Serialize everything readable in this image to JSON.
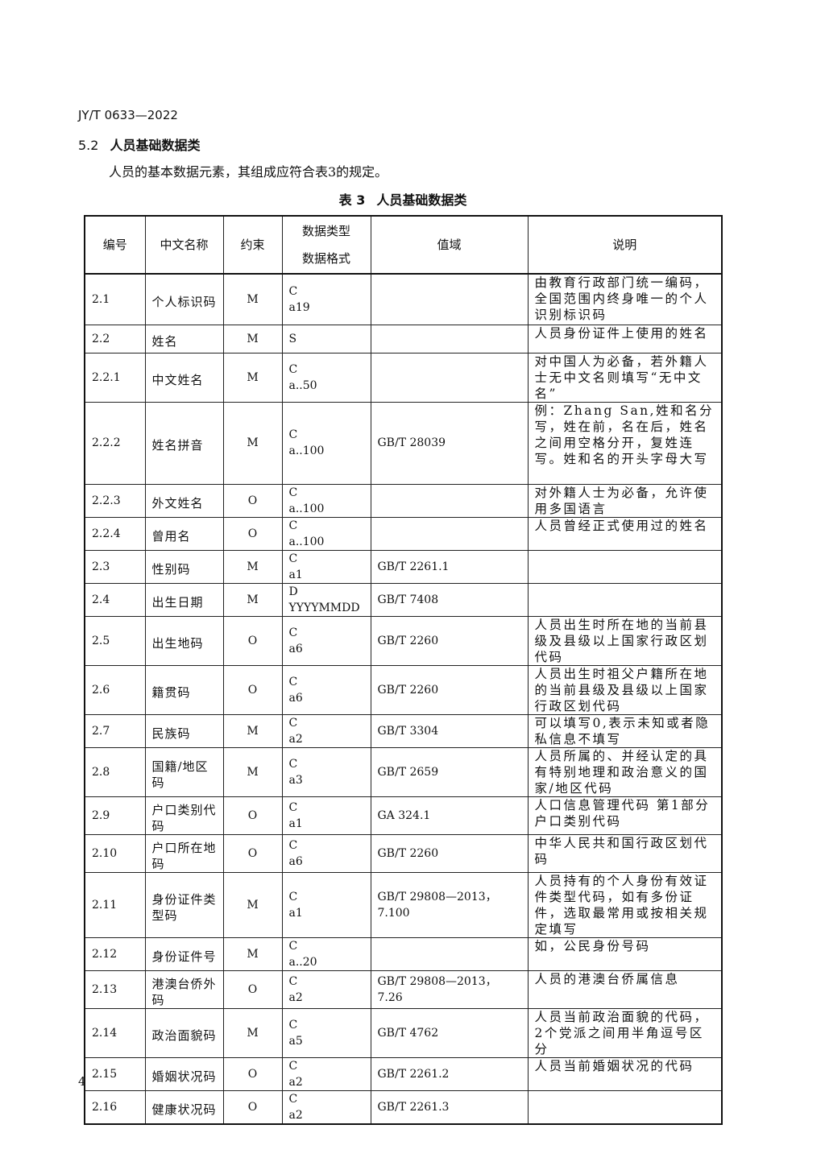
{
  "header": "JY/T 0633—2022",
  "section": {
    "number": "5.2",
    "title": "人员基础数据类"
  },
  "intro": "人员的基本数据元素，其组成应符合表3的规定。",
  "caption": {
    "number": "表 3",
    "title": "人员基础数据类"
  },
  "columns": [
    "编号",
    "中文名称",
    "约束",
    "数据类型",
    "数据格式",
    "值域",
    "说明"
  ],
  "rows": [
    {
      "id": "2.1",
      "name": "个人标识码",
      "constraint": "M",
      "type": "C",
      "format": "a19",
      "domain": "",
      "desc": "由教育行政部门统一编码，全国范围内终身唯一的个人识别标识码"
    },
    {
      "id": "2.2",
      "name": "姓名",
      "constraint": "M",
      "type": "S",
      "format": "",
      "domain": "",
      "desc": "人员身份证件上使用的姓名"
    },
    {
      "id": "2.2.1",
      "name": "中文姓名",
      "constraint": "M",
      "type": "C",
      "format": "a..50",
      "domain": "",
      "desc": "对中国人为必备，若外籍人士无中文名则填写“无中文名”"
    },
    {
      "id": "2.2.2",
      "name": "姓名拼音",
      "constraint": "M",
      "type": "C",
      "format": "a..100",
      "domain": "GB/T 28039",
      "desc": "例：Zhang San,姓和名分写，姓在前，名在后，姓名之间用空格分开，复姓连写。姓和名的开头字母大写"
    },
    {
      "id": "2.2.3",
      "name": "外文姓名",
      "constraint": "O",
      "type": "C",
      "format": "a..100",
      "domain": "",
      "desc": "对外籍人士为必备，允许使用多国语言"
    },
    {
      "id": "2.2.4",
      "name": "曾用名",
      "constraint": "O",
      "type": "C",
      "format": "a..100",
      "domain": "",
      "desc": "人员曾经正式使用过的姓名"
    },
    {
      "id": "2.3",
      "name": "性别码",
      "constraint": "M",
      "type": "C",
      "format": "a1",
      "domain": "GB/T 2261.1",
      "desc": ""
    },
    {
      "id": "2.4",
      "name": "出生日期",
      "constraint": "M",
      "type": "D",
      "format": "YYYYMMDD",
      "domain": "GB/T 7408",
      "desc": ""
    },
    {
      "id": "2.5",
      "name": "出生地码",
      "constraint": "O",
      "type": "C",
      "format": "a6",
      "domain": "GB/T 2260",
      "desc": "人员出生时所在地的当前县级及县级以上国家行政区划代码"
    },
    {
      "id": "2.6",
      "name": "籍贯码",
      "constraint": "O",
      "type": "C",
      "format": "a6",
      "domain": "GB/T 2260",
      "desc": "人员出生时祖父户籍所在地的当前县级及县级以上国家行政区划代码"
    },
    {
      "id": "2.7",
      "name": "民族码",
      "constraint": "M",
      "type": "C",
      "format": "a2",
      "domain": "GB/T 3304",
      "desc": "可以填写0,表示未知或者隐私信息不填写"
    },
    {
      "id": "2.8",
      "name": "国籍/地区码",
      "constraint": "M",
      "type": "C",
      "format": "a3",
      "domain": "GB/T 2659",
      "desc": "人员所属的、并经认定的具有特别地理和政治意义的国家/地区代码"
    },
    {
      "id": "2.9",
      "name": "户口类别代码",
      "constraint": "O",
      "type": "C",
      "format": "a1",
      "domain": "GA 324.1",
      "desc": "人口信息管理代码 第1部分 户口类别代码"
    },
    {
      "id": "2.10",
      "name": "户口所在地码",
      "constraint": "O",
      "type": "C",
      "format": "a6",
      "domain": "GB/T 2260",
      "desc": "中华人民共和国行政区划代码"
    },
    {
      "id": "2.11",
      "name": "身份证件类型码",
      "constraint": "M",
      "type": "C",
      "format": "a1",
      "domain": "GB/T 29808—2013，7.100",
      "desc": "人员持有的个人身份有效证件类型代码，如有多份证件，选取最常用或按相关规定填写"
    },
    {
      "id": "2.12",
      "name": "身份证件号",
      "constraint": "M",
      "type": "C",
      "format": "a..20",
      "domain": "",
      "desc": "如，公民身份号码"
    },
    {
      "id": "2.13",
      "name": "港澳台侨外码",
      "constraint": "O",
      "type": "C",
      "format": "a2",
      "domain": "GB/T 29808—2013，7.26",
      "desc": "人员的港澳台侨属信息"
    },
    {
      "id": "2.14",
      "name": "政治面貌码",
      "constraint": "M",
      "type": "C",
      "format": "a5",
      "domain": "GB/T 4762",
      "desc": "人员当前政治面貌的代码，2个党派之间用半角逗号区分"
    },
    {
      "id": "2.15",
      "name": "婚姻状况码",
      "constraint": "O",
      "type": "C",
      "format": "a2",
      "domain": "GB/T 2261.2",
      "desc": "人员当前婚姻状况的代码"
    },
    {
      "id": "2.16",
      "name": "健康状况码",
      "constraint": "O",
      "type": "C",
      "format": "a2",
      "domain": "GB/T 2261.3",
      "desc": ""
    }
  ],
  "page_number": "4"
}
